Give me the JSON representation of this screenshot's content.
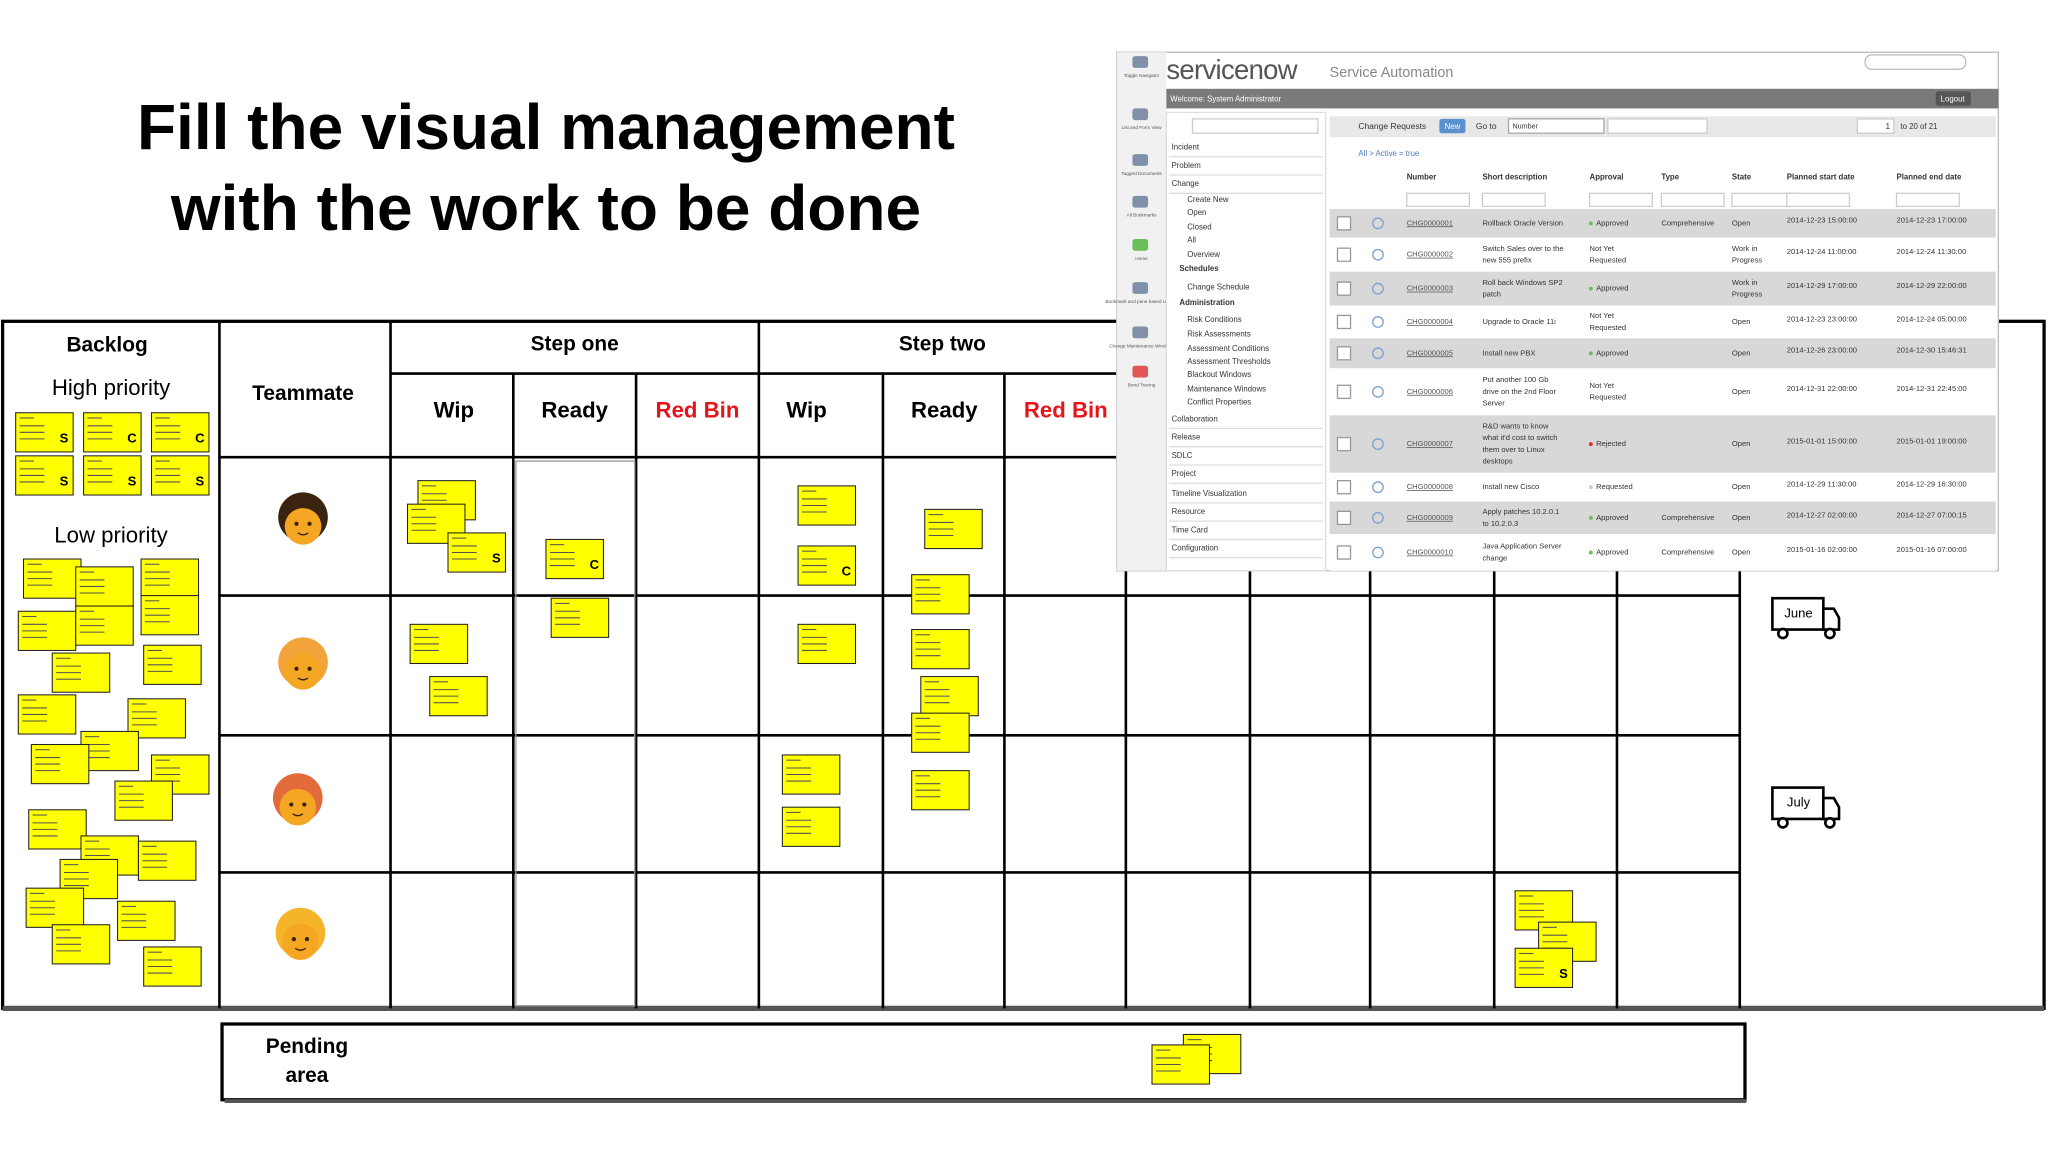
{
  "title": [
    "Fill the visual management",
    "with the work to be done"
  ],
  "board": {
    "backlog": "Backlog",
    "high_priority": "High priority",
    "low_priority": "Low priority",
    "teammate": "Teammate",
    "steps": [
      {
        "name": "Step one",
        "columns": [
          "Wip",
          "Ready",
          "Red Bin"
        ]
      },
      {
        "name": "Step two",
        "columns": [
          "Wip",
          "Ready",
          "Red Bin"
        ]
      }
    ],
    "deliveries": [
      "June",
      "July"
    ],
    "pending_area": [
      "Pending",
      "area"
    ]
  },
  "sticky_marks": {
    "s": "S",
    "c": "C"
  },
  "servicenow": {
    "logo": "servicenow",
    "product": "Service Automation",
    "welcome": "Welcome: System Administrator",
    "logout": "Logout",
    "icon_labels": [
      "Toggle Navigator",
      "List and Form View",
      "Tagged Documents",
      "All Bookmarks",
      "Home",
      "Bookmark and pane based UI help",
      "Change Maintenance Windows",
      "Bond Tracing"
    ],
    "nav": [
      "Incident",
      "Problem",
      "Change",
      "Create New",
      "Open",
      "Closed",
      "All",
      "Overview",
      "Schedules",
      "Change Schedule",
      "Administration",
      "Risk Conditions",
      "Risk Assessments",
      "Assessment Conditions",
      "Assessment Thresholds",
      "Blackout Windows",
      "Maintenance Windows",
      "Conflict Properties",
      "Collaboration",
      "Release",
      "SDLC",
      "Project",
      "Timeline Visualization",
      "Resource",
      "Time Card",
      "Configuration"
    ],
    "list_title": "Change Requests",
    "new_button": "New",
    "goto": "Go to",
    "goto_field": "Number",
    "page": "1",
    "page_range": "to 20 of 21",
    "filter": "All > Active = true",
    "columns": [
      "Number",
      "Short description",
      "Approval",
      "Type",
      "State",
      "Planned start date",
      "Planned end date"
    ],
    "rows": [
      {
        "number": "CHG0000001",
        "description": [
          "Rollback Oracle Version"
        ],
        "approval": [
          "Approved"
        ],
        "type": "Comprehensive",
        "state": [
          "Open"
        ],
        "start": "2014-12-23 15:00:00",
        "end": "2014-12-23 17:00:00"
      },
      {
        "number": "CHG0000002",
        "description": [
          "Switch Sales over to the",
          "new 555 prefix"
        ],
        "approval": [
          "Not Yet",
          "Requested"
        ],
        "state": [
          "Work in",
          "Progress"
        ],
        "start": "2014-12-24 11:00:00",
        "end": "2014-12-24 11:30:00"
      },
      {
        "number": "CHG0000003",
        "description": [
          "Roll back Windows SP2",
          "patch"
        ],
        "approval": [
          "Approved"
        ],
        "state": [
          "Work in",
          "Progress"
        ],
        "start": "2014-12-29 17:00:00",
        "end": "2014-12-29 22:00:00"
      },
      {
        "number": "CHG0000004",
        "description": [
          "Upgrade to Oracle 11i"
        ],
        "approval": [
          "Not Yet",
          "Requested"
        ],
        "state": [
          "Open"
        ],
        "start": "2014-12-23 23:00:00",
        "end": "2014-12-24 05:00:00"
      },
      {
        "number": "CHG0000005",
        "description": [
          "Install new PBX"
        ],
        "approval": [
          "Approved"
        ],
        "state": [
          "Open"
        ],
        "start": "2014-12-26 23:00:00",
        "end": "2014-12-30 15:46:31"
      },
      {
        "number": "CHG0000006",
        "description": [
          "Put another 100 Gb",
          "drive on the 2nd Floor",
          "Server"
        ],
        "approval": [
          "Not Yet",
          "Requested"
        ],
        "state": [
          "Open"
        ],
        "start": "2014-12-31 22:00:00",
        "end": "2014-12-31 22:45:00"
      },
      {
        "number": "CHG0000007",
        "description": [
          "R&D wants to know",
          "what it'd cost to switch",
          "them over to Linux",
          "desktops"
        ],
        "approval": [
          "Rejected"
        ],
        "state": [
          "Open"
        ],
        "start": "2015-01-01 15:00:00",
        "end": "2015-01-01 19:00:00"
      },
      {
        "number": "CHG0000008",
        "description": [
          "Install new Cisco"
        ],
        "approval": [
          "Requested"
        ],
        "state": [
          "Open"
        ],
        "start": "2014-12-29 11:30:00",
        "end": "2014-12-29 16:30:00"
      },
      {
        "number": "CHG0000009",
        "description": [
          "Apply patches 10.2.0.1",
          "to 10.2.0.3"
        ],
        "approval": [
          "Approved"
        ],
        "type": "Comprehensive",
        "state": [
          "Open"
        ],
        "start": "2014-12-27 02:00:00",
        "end": "2014-12-27 07:00:15"
      },
      {
        "number": "CHG0000010",
        "description": [
          "Java Application Server",
          "change"
        ],
        "approval": [
          "Approved"
        ],
        "type": "Comprehensive",
        "state": [
          "Open"
        ],
        "start": "2015-01-16 02:00:00",
        "end": "2015-01-16 07:00:00"
      }
    ]
  }
}
